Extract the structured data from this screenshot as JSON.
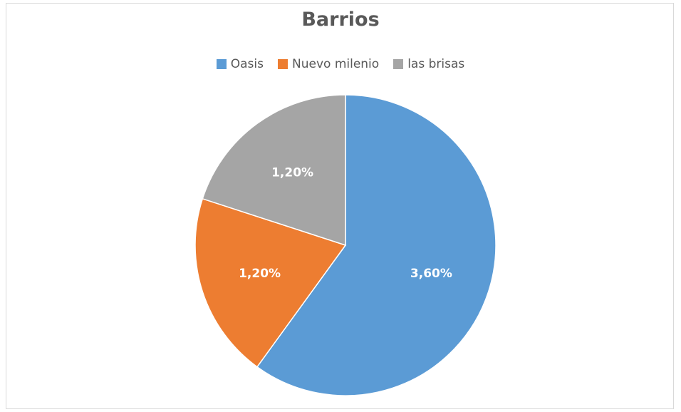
{
  "chart_data": {
    "type": "pie",
    "title": "Barrios",
    "categories": [
      "Oasis",
      "Nuevo milenio",
      "las brisas"
    ],
    "values": [
      3.6,
      1.2,
      1.2
    ],
    "labels": [
      "3,60%",
      "1,20%",
      "1,20%"
    ],
    "colors": [
      "#5b9bd5",
      "#ed7d31",
      "#a5a5a5"
    ],
    "legend": "top"
  }
}
